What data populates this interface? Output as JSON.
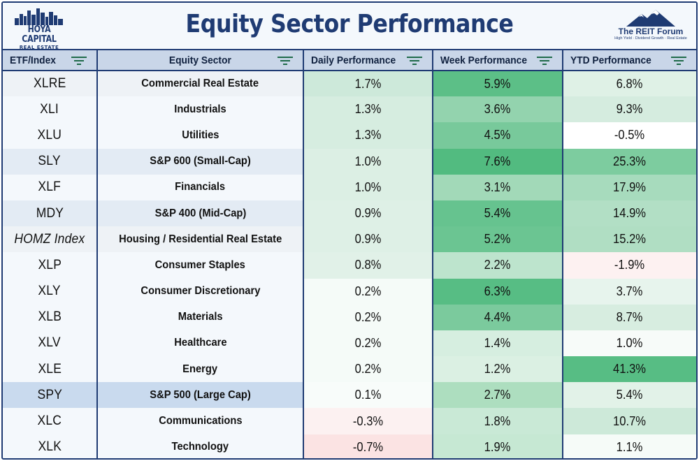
{
  "header": {
    "title": "Equity Sector Performance",
    "logo_left": {
      "line1": "HOYA CAPITAL",
      "line2": "REAL ESTATE"
    },
    "logo_right": {
      "line1": "The REIT Forum",
      "line2": "High Yield · Dividend Growth · Real Estate"
    }
  },
  "columns": [
    {
      "label": "ETF/Index"
    },
    {
      "label": "Equity Sector"
    },
    {
      "label": "Daily Performance"
    },
    {
      "label": "Week Performance"
    },
    {
      "label": "YTD Performance"
    }
  ],
  "rows": [
    {
      "etf": "XLRE",
      "sector": "Commercial Real Estate",
      "daily": "1.7%",
      "week": "5.9%",
      "ytd": "6.8%",
      "daily_bg": "#cde9da",
      "week_bg": "#5cbf87",
      "ytd_bg": "#dff1e6",
      "style": "alt"
    },
    {
      "etf": "XLI",
      "sector": "Industrials",
      "daily": "1.3%",
      "week": "3.6%",
      "ytd": "9.3%",
      "daily_bg": "#d6ede0",
      "week_bg": "#93d3ae",
      "ytd_bg": "#d5ecdf",
      "style": ""
    },
    {
      "etf": "XLU",
      "sector": "Utilities",
      "daily": "1.3%",
      "week": "4.5%",
      "ytd": "-0.5%",
      "daily_bg": "#d6ede0",
      "week_bg": "#78c99b",
      "ytd_bg": "#ffffff",
      "style": ""
    },
    {
      "etf": "SLY",
      "sector": "S&P 600 (Small-Cap)",
      "daily": "1.0%",
      "week": "7.6%",
      "ytd": "25.3%",
      "daily_bg": "#dcefe4",
      "week_bg": "#52bb80",
      "ytd_bg": "#7dcc9f",
      "style": "soft"
    },
    {
      "etf": "XLF",
      "sector": "Financials",
      "daily": "1.0%",
      "week": "3.1%",
      "ytd": "17.9%",
      "daily_bg": "#dcefe4",
      "week_bg": "#a2d9b8",
      "ytd_bg": "#a7dbbd",
      "style": ""
    },
    {
      "etf": "MDY",
      "sector": "S&P 400 (Mid-Cap)",
      "daily": "0.9%",
      "week": "5.4%",
      "ytd": "14.9%",
      "daily_bg": "#def0e6",
      "week_bg": "#66c38f",
      "ytd_bg": "#b2dfc5",
      "style": "soft"
    },
    {
      "etf": "HOMZ Index",
      "sector": "Housing / Residential Real Estate",
      "daily": "0.9%",
      "week": "5.2%",
      "ytd": "15.2%",
      "daily_bg": "#def0e6",
      "week_bg": "#6bc592",
      "ytd_bg": "#b0dec3",
      "style": "alt",
      "italic": true
    },
    {
      "etf": "XLP",
      "sector": "Consumer Staples",
      "daily": "0.8%",
      "week": "2.2%",
      "ytd": "-1.9%",
      "daily_bg": "#e1f1e8",
      "week_bg": "#bde4cd",
      "ytd_bg": "#fdf1f1",
      "style": ""
    },
    {
      "etf": "XLY",
      "sector": "Consumer Discretionary",
      "daily": "0.2%",
      "week": "6.3%",
      "ytd": "3.7%",
      "daily_bg": "#f5fbf8",
      "week_bg": "#57bd84",
      "ytd_bg": "#e7f4ed",
      "style": ""
    },
    {
      "etf": "XLB",
      "sector": "Materials",
      "daily": "0.2%",
      "week": "4.4%",
      "ytd": "8.7%",
      "daily_bg": "#f5fbf8",
      "week_bg": "#7bca9d",
      "ytd_bg": "#d7ede0",
      "style": ""
    },
    {
      "etf": "XLV",
      "sector": "Healthcare",
      "daily": "0.2%",
      "week": "1.4%",
      "ytd": "1.0%",
      "daily_bg": "#f5fbf8",
      "week_bg": "#d6eee0",
      "ytd_bg": "#f7fbf9",
      "style": ""
    },
    {
      "etf": "XLE",
      "sector": "Energy",
      "daily": "0.2%",
      "week": "1.2%",
      "ytd": "41.3%",
      "daily_bg": "#f5fbf8",
      "week_bg": "#dbf0e3",
      "ytd_bg": "#57bd84",
      "style": ""
    },
    {
      "etf": "SPY",
      "sector": "S&P 500 (Large Cap)",
      "daily": "0.1%",
      "week": "2.7%",
      "ytd": "5.4%",
      "daily_bg": "#f8fcfa",
      "week_bg": "#addebf",
      "ytd_bg": "#e2f2e8",
      "style": "hl"
    },
    {
      "etf": "XLC",
      "sector": "Communications",
      "daily": "-0.3%",
      "week": "1.8%",
      "ytd": "10.7%",
      "daily_bg": "#fcf1f1",
      "week_bg": "#c9e9d6",
      "ytd_bg": "#cde9d9",
      "style": ""
    },
    {
      "etf": "XLK",
      "sector": "Technology",
      "daily": "-0.7%",
      "week": "1.9%",
      "ytd": "1.1%",
      "daily_bg": "#fbe3e3",
      "week_bg": "#c6e8d3",
      "ytd_bg": "#f6fbf8",
      "style": ""
    }
  ]
}
